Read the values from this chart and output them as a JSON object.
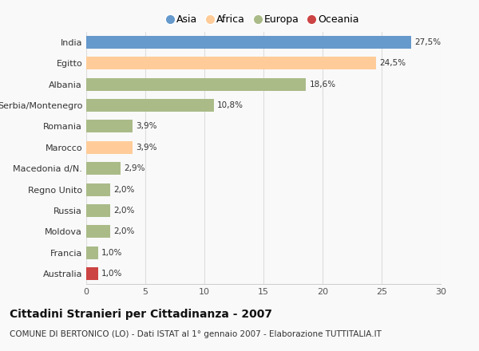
{
  "countries": [
    "India",
    "Egitto",
    "Albania",
    "Serbia/Montenegro",
    "Romania",
    "Marocco",
    "Macedonia d/N.",
    "Regno Unito",
    "Russia",
    "Moldova",
    "Francia",
    "Australia"
  ],
  "values": [
    27.5,
    24.5,
    18.6,
    10.8,
    3.9,
    3.9,
    2.9,
    2.0,
    2.0,
    2.0,
    1.0,
    1.0
  ],
  "labels": [
    "27,5%",
    "24,5%",
    "18,6%",
    "10,8%",
    "3,9%",
    "3,9%",
    "2,9%",
    "2,0%",
    "2,0%",
    "2,0%",
    "1,0%",
    "1,0%"
  ],
  "continents": [
    "Asia",
    "Africa",
    "Europa",
    "Europa",
    "Europa",
    "Africa",
    "Europa",
    "Europa",
    "Europa",
    "Europa",
    "Europa",
    "Oceania"
  ],
  "colors": {
    "Asia": "#6699cc",
    "Africa": "#ffcc99",
    "Europa": "#aabb88",
    "Oceania": "#cc4444"
  },
  "legend_order": [
    "Asia",
    "Africa",
    "Europa",
    "Oceania"
  ],
  "legend_colors": [
    "#6699cc",
    "#ffcc99",
    "#aabb88",
    "#cc4444"
  ],
  "title": "Cittadini Stranieri per Cittadinanza - 2007",
  "subtitle": "COMUNE DI BERTONICO (LO) - Dati ISTAT al 1° gennaio 2007 - Elaborazione TUTTITALIA.IT",
  "xlim": [
    0,
    30
  ],
  "xticks": [
    0,
    5,
    10,
    15,
    20,
    25,
    30
  ],
  "background_color": "#f9f9f9",
  "bar_height": 0.6,
  "title_fontsize": 10,
  "subtitle_fontsize": 7.5,
  "label_fontsize": 7.5,
  "tick_fontsize": 8,
  "legend_fontsize": 9
}
